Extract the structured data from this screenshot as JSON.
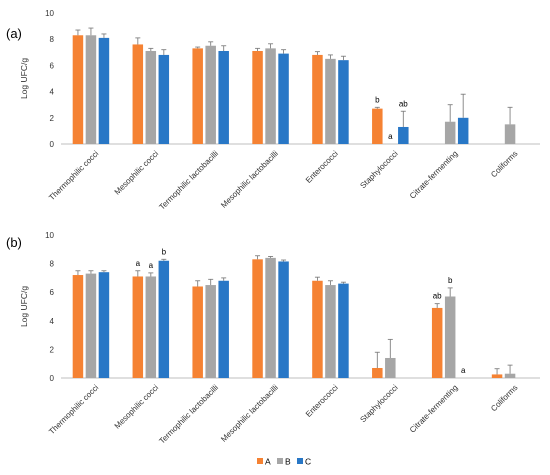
{
  "legend": {
    "items": [
      {
        "label": "A",
        "color": "#f58233"
      },
      {
        "label": "B",
        "color": "#a6a6a6"
      },
      {
        "label": "C",
        "color": "#2877c6"
      }
    ]
  },
  "chart_data": [
    {
      "type": "bar",
      "panel_label": "(a)",
      "ylabel": "Log UFC/g",
      "ylim": [
        0,
        10
      ],
      "yticks": [
        0,
        2,
        4,
        6,
        8,
        10
      ],
      "grid": false,
      "categories": [
        "Thermophilic cocci",
        "Mesophilic cocci",
        "Termophilic lactobacilli",
        "Mesophilic lactobacilli",
        "Enterococci",
        "Staphylococci",
        "Citrate-fermenting",
        "Coliforms"
      ],
      "series": [
        {
          "name": "A",
          "values": [
            8.3,
            7.6,
            7.3,
            7.1,
            6.8,
            2.7,
            0,
            0
          ],
          "errors": [
            0.4,
            0.5,
            0.1,
            0.2,
            0.25,
            0.1,
            0,
            0
          ]
        },
        {
          "name": "B",
          "values": [
            8.3,
            7.1,
            7.5,
            7.3,
            6.5,
            0,
            1.7,
            1.5
          ],
          "errors": [
            0.55,
            0.2,
            0.3,
            0.35,
            0.3,
            0,
            1.3,
            1.3
          ]
        },
        {
          "name": "C",
          "values": [
            8.1,
            6.8,
            7.1,
            6.9,
            6.4,
            1.3,
            2.0,
            0
          ],
          "errors": [
            0.3,
            0.4,
            0.4,
            0.3,
            0.3,
            1.2,
            1.8,
            0
          ]
        }
      ],
      "annotations": [
        {
          "category": 5,
          "series": 0,
          "text": "b"
        },
        {
          "category": 5,
          "series": 1,
          "text": "a"
        },
        {
          "category": 5,
          "series": 2,
          "text": "ab"
        }
      ]
    },
    {
      "type": "bar",
      "panel_label": "(b)",
      "ylabel": "Log UFC/g",
      "ylim": [
        0,
        10
      ],
      "yticks": [
        0,
        2,
        4,
        6,
        8,
        10
      ],
      "grid": false,
      "categories": [
        "Thermophilic cocci",
        "Mesophilic cocci",
        "Termophilic lactobacilli",
        "Mesophilic lactobacilli",
        "Enterococci",
        "Staphylococci",
        "Citrate-fermenting",
        "Coliforms"
      ],
      "series": [
        {
          "name": "A",
          "values": [
            7.2,
            7.1,
            6.4,
            8.3,
            6.8,
            0.7,
            4.9,
            0.25
          ],
          "errors": [
            0.3,
            0.4,
            0.4,
            0.25,
            0.25,
            1.1,
            0.3,
            0.4
          ]
        },
        {
          "name": "B",
          "values": [
            7.3,
            7.1,
            6.5,
            8.4,
            6.5,
            1.4,
            5.7,
            0.3
          ],
          "errors": [
            0.2,
            0.25,
            0.4,
            0.1,
            0.3,
            1.3,
            0.6,
            0.6
          ]
        },
        {
          "name": "C",
          "values": [
            7.4,
            8.2,
            6.8,
            8.15,
            6.6,
            0,
            0,
            0
          ],
          "errors": [
            0.1,
            0.1,
            0.2,
            0.1,
            0.1,
            0,
            0,
            0
          ]
        }
      ],
      "annotations": [
        {
          "category": 1,
          "series": 0,
          "text": "a"
        },
        {
          "category": 1,
          "series": 1,
          "text": "a"
        },
        {
          "category": 1,
          "series": 2,
          "text": "b"
        },
        {
          "category": 6,
          "series": 0,
          "text": "ab"
        },
        {
          "category": 6,
          "series": 1,
          "text": "b"
        },
        {
          "category": 6,
          "series": 2,
          "text": "a"
        }
      ]
    }
  ]
}
